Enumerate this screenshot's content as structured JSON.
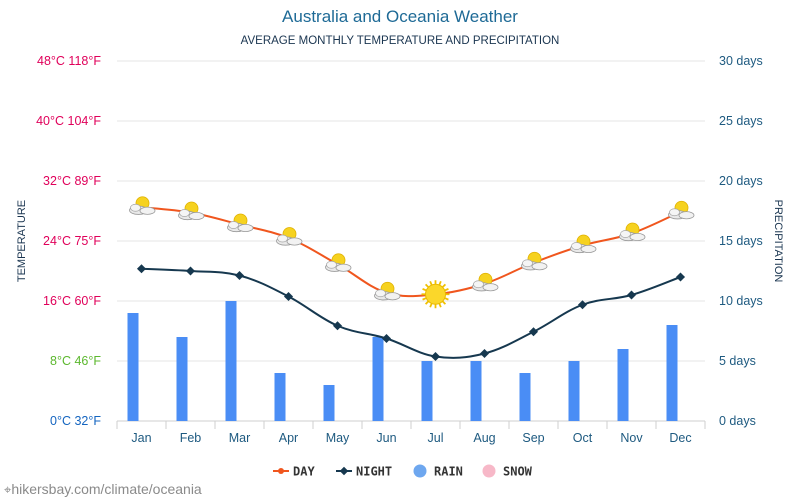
{
  "header": {
    "title": "Australia and Oceania Weather",
    "subtitle": "AVERAGE MONTHLY TEMPERATURE AND PRECIPITATION"
  },
  "footer": {
    "pin": "⌖",
    "text": "hikersbay.com/climate/oceania"
  },
  "colors": {
    "day": "#f0561e",
    "night": "#16384f",
    "rain": "#4a8df5",
    "rain_legend": "#6ea7ef",
    "snow_legend": "#f7b8c8",
    "left_axis_hot": "#e0005a",
    "left_axis_mild": "#5cb82e",
    "left_axis_cold": "#1565c0",
    "right_axis": "#1e5a80",
    "month_label": "#1e5a80",
    "grid": "#e6e6e6"
  },
  "chart_data": {
    "type": "line",
    "months": [
      "Jan",
      "Feb",
      "Mar",
      "Apr",
      "May",
      "Jun",
      "Jul",
      "Aug",
      "Sep",
      "Oct",
      "Nov",
      "Dec"
    ],
    "left_axis": {
      "label": "TEMPERATURE",
      "range": [
        0,
        48
      ],
      "ticks": [
        "0°C 32°F",
        "8°C 46°F",
        "16°C 60°F",
        "24°C 75°F",
        "32°C 89°F",
        "40°C 104°F",
        "48°C 118°F"
      ]
    },
    "right_axis": {
      "label": "PRECIPITATION",
      "range": [
        0,
        30
      ],
      "ticks": [
        "0 days",
        "5 days",
        "10 days",
        "15 days",
        "20 days",
        "25 days",
        "30 days"
      ]
    },
    "series": [
      {
        "name": "DAY",
        "type": "line",
        "axis": "left",
        "icons": [
          "partly-cloudy",
          "partly-cloudy",
          "partly-cloudy",
          "partly-cloudy",
          "partly-cloudy",
          "partly-cloudy",
          "sunny",
          "partly-cloudy",
          "partly-cloudy",
          "partly-cloudy",
          "partly-cloudy",
          "partly-cloudy"
        ],
        "values": [
          28.5,
          27.8,
          26.2,
          24.4,
          20.9,
          17.1,
          16.9,
          18.3,
          21.1,
          23.4,
          25.0,
          27.9
        ]
      },
      {
        "name": "NIGHT",
        "type": "line",
        "axis": "left",
        "values": [
          20.3,
          20.0,
          19.4,
          16.6,
          12.7,
          11.0,
          8.6,
          9.0,
          11.9,
          15.5,
          16.8,
          19.2
        ]
      },
      {
        "name": "RAIN",
        "type": "bar",
        "axis": "right",
        "values": [
          9,
          7,
          10,
          4,
          3,
          7,
          5,
          5,
          4,
          5,
          6,
          8
        ]
      },
      {
        "name": "SNOW",
        "type": "bar",
        "axis": "right",
        "values": [
          0,
          0,
          0,
          0,
          0,
          0,
          0,
          0,
          0,
          0,
          0,
          0
        ]
      }
    ],
    "grid": true,
    "legend_position": "bottom"
  }
}
